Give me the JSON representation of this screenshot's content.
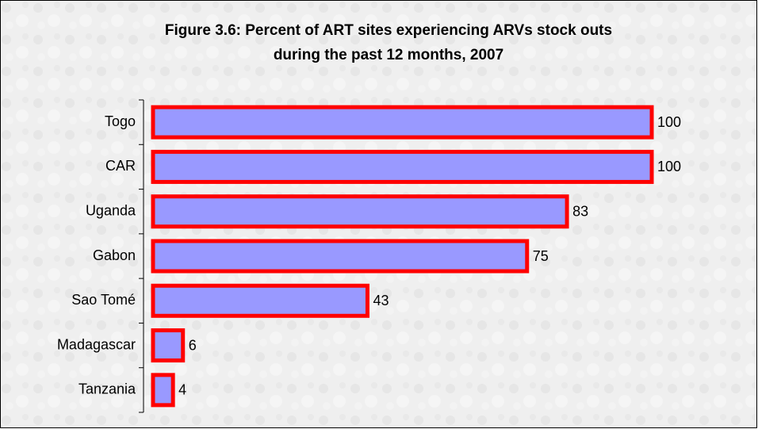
{
  "chart_data": {
    "type": "bar",
    "orientation": "horizontal",
    "title": [
      "Figure 3.6: Percent of ART sites experiencing ARVs stock outs",
      "during the past 12 months, 2007"
    ],
    "categories": [
      "Togo",
      "CAR",
      "Uganda",
      "Gabon",
      "Sao Tomé",
      "Madagascar",
      "Tanzania"
    ],
    "values": [
      100,
      100,
      83,
      75,
      43,
      6,
      4
    ],
    "color": "#9999ff",
    "edge_color": "#ff0000",
    "xlim": [
      0,
      100
    ]
  }
}
